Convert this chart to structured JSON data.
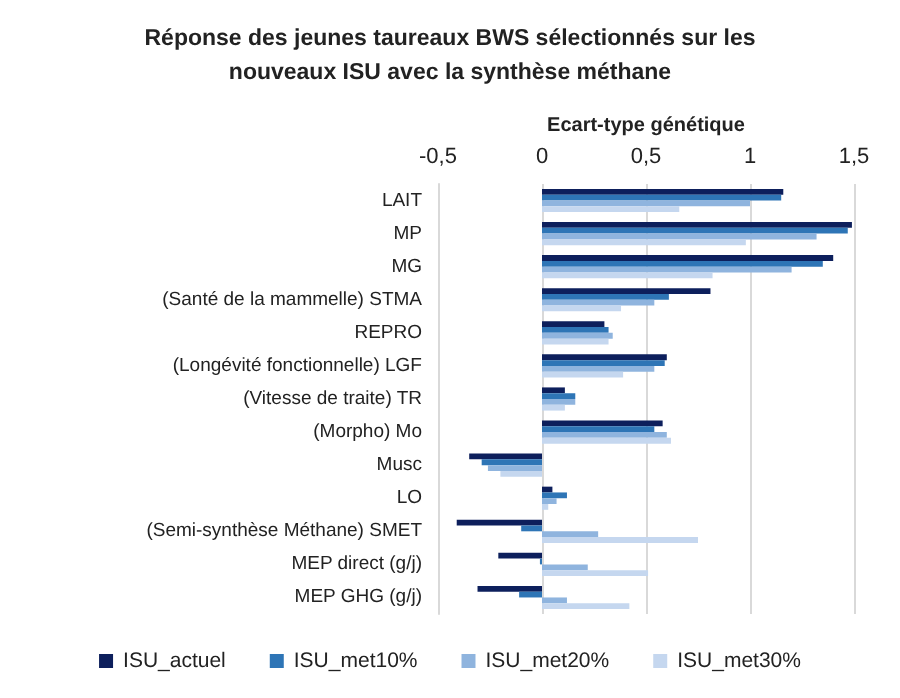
{
  "chart_data": {
    "type": "bar",
    "orientation": "horizontal",
    "title": "Réponse des jeunes taureaux BWS sélectionnés sur les\nnouveaux ISU avec la synthèse méthane",
    "xlabel": "Ecart-type génétique",
    "categories": [
      "LAIT",
      "MP",
      "MG",
      "(Santé de la mammelle) STMA",
      "REPRO",
      "(Longévité fonctionnelle) LGF",
      "(Vitesse de traite) TR",
      "(Morpho) Mo",
      "Musc",
      "LO",
      "(Semi-synthèse Méthane) SMET",
      "MEP direct (g/j)",
      "MEP GHG (g/j)"
    ],
    "series": [
      {
        "name": "ISU_actuel",
        "color": "#0d1f5c",
        "values": [
          1.16,
          1.49,
          1.4,
          0.81,
          0.3,
          0.6,
          0.11,
          0.58,
          -0.35,
          0.05,
          -0.41,
          -0.21,
          -0.31
        ]
      },
      {
        "name": "ISU_met10%",
        "color": "#2e75b6",
        "values": [
          1.15,
          1.47,
          1.35,
          0.61,
          0.32,
          0.59,
          0.16,
          0.54,
          -0.29,
          0.12,
          -0.1,
          -0.01,
          -0.11
        ]
      },
      {
        "name": "ISU_met20%",
        "color": "#8fb4de",
        "values": [
          1.0,
          1.32,
          1.2,
          0.54,
          0.34,
          0.54,
          0.16,
          0.6,
          -0.26,
          0.07,
          0.27,
          0.22,
          0.12
        ]
      },
      {
        "name": "ISU_met30%",
        "color": "#c5d7ef",
        "values": [
          0.66,
          0.98,
          0.82,
          0.38,
          0.32,
          0.39,
          0.11,
          0.62,
          -0.2,
          0.03,
          0.75,
          0.51,
          0.42
        ]
      }
    ],
    "xlim": [
      -0.5,
      1.5
    ],
    "xticks": [
      {
        "value": -0.5,
        "label": "-0,5"
      },
      0,
      {
        "value": 0.5,
        "label": "0,5"
      },
      1,
      {
        "value": 1.5,
        "label": "1,5"
      }
    ],
    "grid": "x",
    "legend": "bottom"
  }
}
